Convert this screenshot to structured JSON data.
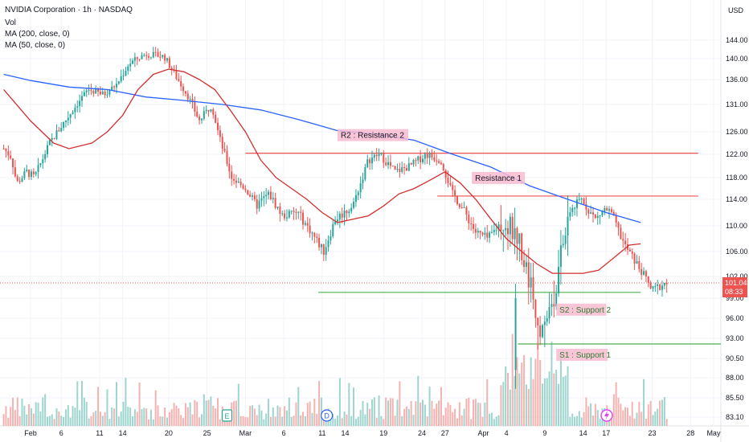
{
  "chart_data": {
    "type": "candlestick",
    "title": "NVIDIA Corporation · 1h · NASDAQ",
    "currency": "USD",
    "legend": [
      "Vol",
      "MA (200, close, 0)",
      "MA (50, close, 0)"
    ],
    "last_price": "101.04",
    "countdown": "08:33",
    "price_ticks": [
      144,
      140,
      136,
      131,
      126,
      122,
      118,
      114,
      110,
      106,
      102,
      99,
      96,
      93,
      90.5,
      88,
      85.5,
      83.1
    ],
    "price_tick_labels": [
      "144.00",
      "140.00",
      "136.00",
      "131.00",
      "126.00",
      "122.00",
      "118.00",
      "114.00",
      "110.00",
      "106.00",
      "102.00",
      "99.00",
      "96.00",
      "93.00",
      "90.50",
      "88.00",
      "85.50",
      "83.10"
    ],
    "x_ticks": [
      {
        "d": 0,
        "label": "Feb"
      },
      {
        "d": 4,
        "label": "6"
      },
      {
        "d": 9,
        "label": "11"
      },
      {
        "d": 12,
        "label": "14"
      },
      {
        "d": 18,
        "label": "20"
      },
      {
        "d": 23,
        "label": "25"
      },
      {
        "d": 28,
        "label": "Mar"
      },
      {
        "d": 33,
        "label": "6"
      },
      {
        "d": 38,
        "label": "11"
      },
      {
        "d": 41,
        "label": "14"
      },
      {
        "d": 46,
        "label": "19"
      },
      {
        "d": 51,
        "label": "24"
      },
      {
        "d": 54,
        "label": "27"
      },
      {
        "d": 59,
        "label": "Apr"
      },
      {
        "d": 62,
        "label": "4"
      },
      {
        "d": 67,
        "label": "9"
      },
      {
        "d": 72,
        "label": "14"
      },
      {
        "d": 75,
        "label": "17"
      },
      {
        "d": 81,
        "label": "23"
      },
      {
        "d": 86,
        "label": "28"
      },
      {
        "d": 89,
        "label": "May"
      }
    ],
    "price_path": [
      [
        -3.5,
        123
      ],
      [
        -2.5,
        121.5
      ],
      [
        -1.8,
        117
      ],
      [
        -0.5,
        119
      ],
      [
        0.5,
        118
      ],
      [
        1.5,
        121
      ],
      [
        2.5,
        124
      ],
      [
        3.5,
        126
      ],
      [
        5.5,
        130
      ],
      [
        7.5,
        134
      ],
      [
        9.5,
        133
      ],
      [
        11.2,
        135
      ],
      [
        12.8,
        139
      ],
      [
        15.0,
        141
      ],
      [
        17.4,
        140.5
      ],
      [
        18.8,
        137
      ],
      [
        20.4,
        133
      ],
      [
        22.0,
        128
      ],
      [
        23.6,
        131
      ],
      [
        24.6,
        125
      ],
      [
        26.2,
        118
      ],
      [
        28.0,
        116
      ],
      [
        29.4,
        113
      ],
      [
        31.0,
        115
      ],
      [
        32.8,
        111.5
      ],
      [
        34.8,
        112
      ],
      [
        36.6,
        109
      ],
      [
        38.2,
        106
      ],
      [
        39.7,
        111
      ],
      [
        42.0,
        113
      ],
      [
        44.0,
        121
      ],
      [
        45.5,
        122
      ],
      [
        47.5,
        119
      ],
      [
        49.5,
        120
      ],
      [
        51.5,
        122
      ],
      [
        53.5,
        121
      ],
      [
        55.0,
        115
      ],
      [
        56.6,
        112
      ],
      [
        58.0,
        109
      ],
      [
        59.6,
        108
      ],
      [
        61.6,
        111
      ],
      [
        63.6,
        108
      ],
      [
        64.7,
        103
      ],
      [
        66.4,
        95
      ],
      [
        68.2,
        99
      ],
      [
        70.0,
        112
      ],
      [
        71.8,
        114
      ],
      [
        73.6,
        111
      ],
      [
        74.8,
        112.5
      ],
      [
        75.6,
        112
      ],
      [
        77.4,
        107
      ],
      [
        79.0,
        104
      ],
      [
        81.0,
        100
      ],
      [
        82.4,
        101
      ],
      [
        83.0,
        101.04
      ]
    ],
    "crash_low": 86.62,
    "ma200": [
      [
        -3.5,
        137
      ],
      [
        0,
        135.8
      ],
      [
        5,
        134.5
      ],
      [
        10,
        134
      ],
      [
        15,
        132.5
      ],
      [
        20,
        131.8
      ],
      [
        25,
        131
      ],
      [
        30,
        130
      ],
      [
        35,
        128.2
      ],
      [
        40,
        126.2
      ],
      [
        45,
        125.6
      ],
      [
        50,
        124.5
      ],
      [
        55,
        122
      ],
      [
        60,
        119.8
      ],
      [
        65,
        116.5
      ],
      [
        70,
        114
      ],
      [
        75,
        112
      ],
      [
        79.5,
        110.5
      ]
    ],
    "ma50": [
      [
        -3.5,
        134
      ],
      [
        0,
        128
      ],
      [
        3,
        124
      ],
      [
        5,
        123
      ],
      [
        8,
        124
      ],
      [
        10,
        126
      ],
      [
        12,
        129
      ],
      [
        14,
        134
      ],
      [
        16,
        137
      ],
      [
        18,
        138
      ],
      [
        20,
        137.5
      ],
      [
        22,
        136
      ],
      [
        24,
        134
      ],
      [
        26,
        130
      ],
      [
        28,
        126
      ],
      [
        30,
        121
      ],
      [
        32,
        118
      ],
      [
        34,
        116
      ],
      [
        36,
        114
      ],
      [
        38,
        112
      ],
      [
        40,
        110.5
      ],
      [
        42,
        111
      ],
      [
        44,
        111.5
      ],
      [
        46,
        113
      ],
      [
        48,
        115
      ],
      [
        50,
        116
      ],
      [
        52,
        117.5
      ],
      [
        54,
        119
      ],
      [
        56,
        117
      ],
      [
        58,
        114
      ],
      [
        60,
        111
      ],
      [
        62,
        108
      ],
      [
        64,
        106
      ],
      [
        66,
        104
      ],
      [
        68,
        102.5
      ],
      [
        70,
        102.5
      ],
      [
        72,
        102.5
      ],
      [
        74,
        103
      ],
      [
        76,
        105
      ],
      [
        78,
        107
      ],
      [
        79.5,
        107.2
      ]
    ],
    "annotations": [
      {
        "id": "r2",
        "label": "R2 : Resistance 2",
        "level": 122.2,
        "from": 28,
        "to": 87
      },
      {
        "id": "r1",
        "label": "Resistance 1",
        "level": 114.6,
        "from": 53,
        "to": 87
      },
      {
        "id": "s2",
        "label": "S2 : Support 2",
        "level": 99.8,
        "from": 37.5,
        "to": 79.5
      },
      {
        "id": "s1",
        "label": "S1 : Support 1",
        "level": 92.3,
        "from": 63.5,
        "to": 95
      }
    ],
    "event_badges": [
      {
        "d": 25.6,
        "label": "E"
      },
      {
        "d": 38.6,
        "label": "D"
      }
    ],
    "colors": {
      "up": "#26a69a",
      "down": "#ef5350",
      "ma200": "#2962ff",
      "ma50": "#d32f2f",
      "resistance_line": "#ef5350",
      "support_line": "#4caf50",
      "res_label_bg": "#f8bbd0",
      "sup_label_bg": "#f8bbd0",
      "price_badge": "#ef5350"
    }
  }
}
